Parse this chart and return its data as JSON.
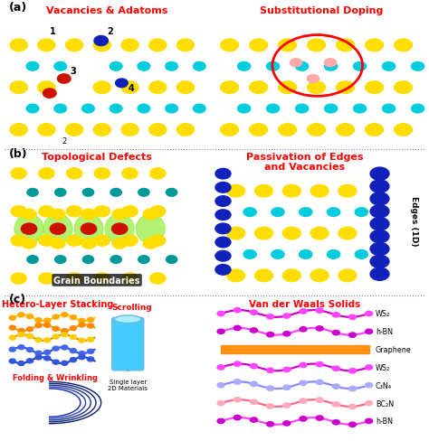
{
  "fig_width": 4.74,
  "fig_height": 4.89,
  "bg_color": "#ffffff",
  "panel_a_label": "(a)",
  "panel_b_label": "(b)",
  "panel_c_label": "(c)",
  "title_a_left": "Vacancies & Adatoms",
  "title_a_right": "Substitutional Doping",
  "title_b_left": "Topological Defects",
  "title_b_right": "Passivation of Edges\nand Vacancies",
  "title_c_left": "Hetero-Layer Stacking",
  "title_c_right": "Van der Waals Solids",
  "label_scrolling": "Scrolling",
  "label_folding": "Folding & Wrinkling",
  "label_single_layer": "Single layer\n2D Materials",
  "vdw_labels": [
    "WS₂",
    "h-BN",
    "Graphene",
    "WS₂",
    "C₃N₄",
    "BC₂N",
    "h-BN"
  ],
  "grain_boundaries_text": "Grain Boundaries",
  "edges_text": "Edges (1D)",
  "title_color": "#ff0000",
  "yellow_atom": "#ffdd00",
  "cyan_atom": "#00ccdd",
  "red_atom": "#cc1100",
  "blue_atom": "#1122bb",
  "teal_atom": "#009999",
  "pink_atom": "#ffaaaa",
  "orange_layer": "#ff8800",
  "purple_layer": "#cc00cc",
  "light_green_gb": "#99ee44",
  "scrolling_color": "#44ccff",
  "dot_sep_color": "#888888"
}
